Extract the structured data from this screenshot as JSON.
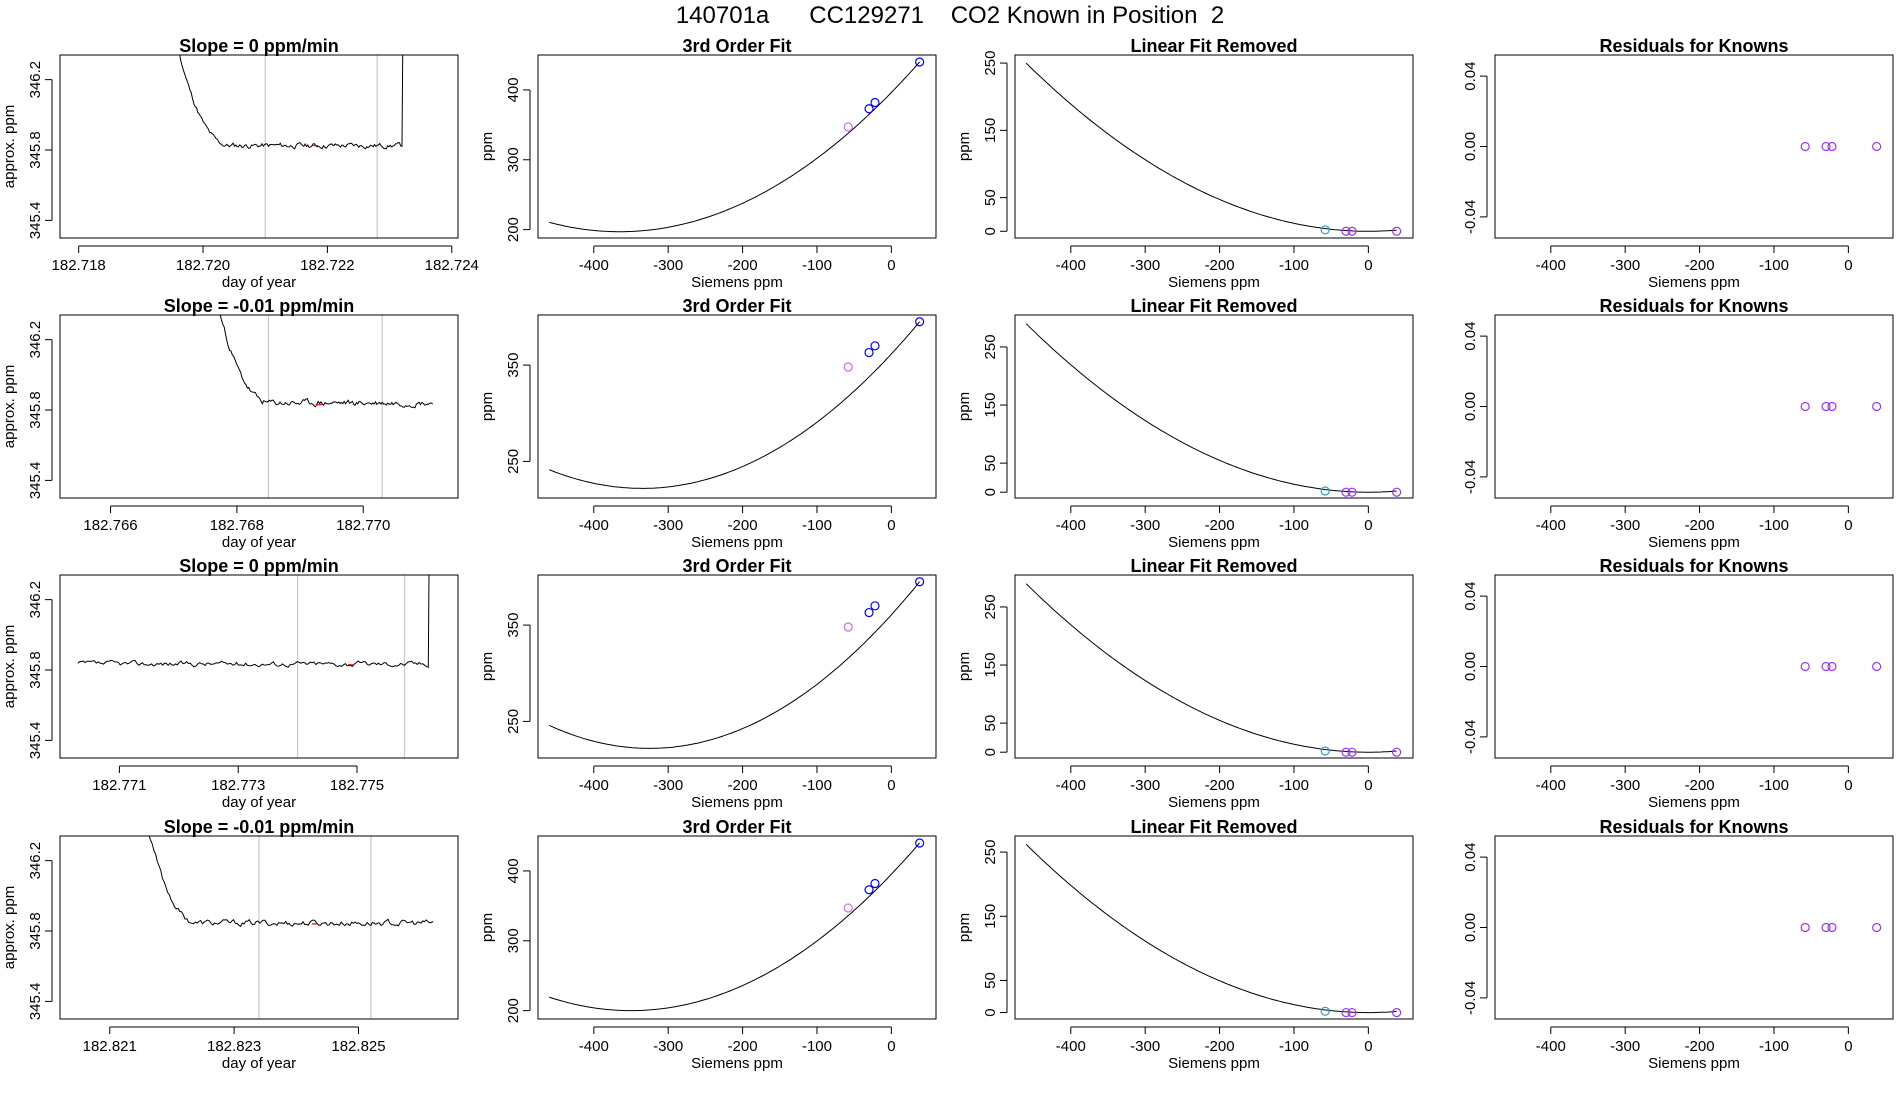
{
  "page": {
    "title": "140701a      CC129271    CO2 Known in Position  2"
  },
  "colors": {
    "axis": "#000000",
    "line": "#000000",
    "gridline": "#c8c8c8",
    "known_point": "#0000ff",
    "other_point": "#cc66ff",
    "cyan_point": "#2b9fbf",
    "residual_point": "#9933ff",
    "red_mark": "#ff0000"
  },
  "chart_data": [
    {
      "type": "line",
      "row": 0,
      "col": 0,
      "title": "Slope =  0  ppm/min",
      "xlabel": "day of year",
      "ylabel": "approx. ppm",
      "xlim": [
        182.7177,
        182.7241
      ],
      "ylim": [
        345.3,
        346.34
      ],
      "xticks": [
        182.718,
        182.72,
        182.722,
        182.724
      ],
      "xtick_labels": [
        "182.718",
        "182.720",
        "182.722",
        "182.724"
      ],
      "yticks": [
        345.4,
        345.8,
        346.2
      ],
      "ytick_labels": [
        "345.4",
        "345.8",
        "346.2"
      ],
      "vlines": [
        182.721,
        182.7228
      ],
      "red_mark": [
        182.7218,
        345.825
      ],
      "series": [
        {
          "name": "trace",
          "shape": "spike-plateau-spike",
          "x_start": 182.7192,
          "x_end": 182.7232,
          "plateau_start": 182.7196,
          "plateau": 345.825,
          "noise": 0.012,
          "seed": 11
        }
      ]
    },
    {
      "type": "line",
      "row": 0,
      "col": 1,
      "title": "3rd Order Fit",
      "xlabel": "Siemens ppm",
      "ylabel": "ppm",
      "xlim": [
        -475,
        60
      ],
      "ylim": [
        188,
        450
      ],
      "xticks": [
        -400,
        -300,
        -200,
        -100,
        0
      ],
      "xtick_labels": [
        "-400",
        "-300",
        "-200",
        "-100",
        "0"
      ],
      "yticks": [
        200,
        300,
        400
      ],
      "ytick_labels": [
        "200",
        "300",
        "400"
      ],
      "curve": {
        "x_from": -460,
        "x_to": 38,
        "x_min": -365,
        "y_min": 197,
        "x_ref": 38,
        "y_ref": 440
      },
      "points": [
        {
          "x": -58,
          "y": 347,
          "color": "other_point"
        },
        {
          "x": -30,
          "y": 373,
          "color": "known_point"
        },
        {
          "x": -22,
          "y": 382,
          "color": "known_point"
        },
        {
          "x": 38,
          "y": 440,
          "color": "known_point"
        }
      ]
    },
    {
      "type": "line",
      "row": 0,
      "col": 2,
      "title": "Linear Fit Removed",
      "xlabel": "Siemens ppm",
      "ylabel": "ppm",
      "xlim": [
        -475,
        60
      ],
      "ylim": [
        -10,
        262
      ],
      "xticks": [
        -400,
        -300,
        -200,
        -100,
        0
      ],
      "xtick_labels": [
        "-400",
        "-300",
        "-200",
        "-100",
        "0"
      ],
      "yticks": [
        0,
        50,
        150,
        250
      ],
      "ytick_labels": [
        "0",
        "50",
        "150",
        "250"
      ],
      "curve": {
        "x_from": -460,
        "x_to": 38,
        "x_min": 0,
        "y_min": 0,
        "x_ref": -460,
        "y_ref": 250
      },
      "points": [
        {
          "x": -58,
          "y": 2,
          "color": "cyan_point"
        },
        {
          "x": -30,
          "y": 0,
          "color": "residual_point"
        },
        {
          "x": -22,
          "y": 0,
          "color": "residual_point"
        },
        {
          "x": 38,
          "y": 0,
          "color": "residual_point"
        }
      ]
    },
    {
      "type": "scatter",
      "row": 0,
      "col": 3,
      "title": "Residuals for Knowns",
      "xlabel": "Siemens ppm",
      "ylabel": "",
      "xlim": [
        -475,
        60
      ],
      "ylim": [
        -0.052,
        0.052
      ],
      "xticks": [
        -400,
        -300,
        -200,
        -100,
        0
      ],
      "xtick_labels": [
        "-400",
        "-300",
        "-200",
        "-100",
        "0"
      ],
      "yticks": [
        -0.04,
        0,
        0.04
      ],
      "ytick_labels": [
        "-0.04",
        "0.00",
        "0.04"
      ],
      "points": [
        {
          "x": -58,
          "y": 0,
          "color": "residual_point"
        },
        {
          "x": -30,
          "y": 0,
          "color": "residual_point"
        },
        {
          "x": -22,
          "y": 0,
          "color": "residual_point"
        },
        {
          "x": 38,
          "y": 0,
          "color": "residual_point"
        }
      ]
    },
    {
      "type": "line",
      "row": 1,
      "col": 0,
      "title": "Slope =  -0.01  ppm/min",
      "xlabel": "day of year",
      "ylabel": "approx. ppm",
      "xlim": [
        182.7652,
        182.7715
      ],
      "ylim": [
        345.3,
        346.34
      ],
      "xticks": [
        182.766,
        182.768,
        182.77
      ],
      "xtick_labels": [
        "182.766",
        "182.768",
        "182.770"
      ],
      "yticks": [
        345.4,
        345.8,
        346.2
      ],
      "ytick_labels": [
        "345.4",
        "345.8",
        "346.2"
      ],
      "vlines": [
        182.7685,
        182.7703
      ],
      "red_mark": [
        182.7693,
        345.83
      ],
      "series": [
        {
          "name": "trace",
          "shape": "spike-plateau",
          "x_start": 182.767,
          "x_end": 182.7711,
          "plateau_start": 182.7677,
          "plateau": 345.84,
          "noise": 0.014,
          "seed": 23
        }
      ]
    },
    {
      "type": "line",
      "row": 1,
      "col": 1,
      "title": "3rd Order Fit",
      "xlabel": "Siemens ppm",
      "ylabel": "ppm",
      "xlim": [
        -475,
        60
      ],
      "ylim": [
        212,
        402
      ],
      "xticks": [
        -400,
        -300,
        -200,
        -100,
        0
      ],
      "xtick_labels": [
        "-400",
        "-300",
        "-200",
        "-100",
        "0"
      ],
      "yticks": [
        250,
        350
      ],
      "ytick_labels": [
        "250",
        "350"
      ],
      "curve": {
        "x_from": -460,
        "x_to": 38,
        "x_min": -335,
        "y_min": 222,
        "x_ref": 38,
        "y_ref": 395
      },
      "points": [
        {
          "x": -58,
          "y": 348,
          "color": "other_point"
        },
        {
          "x": -30,
          "y": 363,
          "color": "known_point"
        },
        {
          "x": -22,
          "y": 370,
          "color": "known_point"
        },
        {
          "x": 38,
          "y": 395,
          "color": "known_point"
        }
      ]
    },
    {
      "type": "line",
      "row": 1,
      "col": 2,
      "title": "Linear Fit Removed",
      "xlabel": "Siemens ppm",
      "ylabel": "ppm",
      "xlim": [
        -475,
        60
      ],
      "ylim": [
        -10,
        305
      ],
      "xticks": [
        -400,
        -300,
        -200,
        -100,
        0
      ],
      "xtick_labels": [
        "-400",
        "-300",
        "-200",
        "-100",
        "0"
      ],
      "yticks": [
        0,
        50,
        150,
        250
      ],
      "ytick_labels": [
        "0",
        "50",
        "150",
        "250"
      ],
      "curve": {
        "x_from": -460,
        "x_to": 38,
        "x_min": 0,
        "y_min": 0,
        "x_ref": -460,
        "y_ref": 290
      },
      "points": [
        {
          "x": -58,
          "y": 2,
          "color": "cyan_point"
        },
        {
          "x": -30,
          "y": 0,
          "color": "residual_point"
        },
        {
          "x": -22,
          "y": 0,
          "color": "residual_point"
        },
        {
          "x": 38,
          "y": 0,
          "color": "residual_point"
        }
      ]
    },
    {
      "type": "scatter",
      "row": 1,
      "col": 3,
      "title": "Residuals for Knowns",
      "xlabel": "Siemens ppm",
      "ylabel": "",
      "xlim": [
        -475,
        60
      ],
      "ylim": [
        -0.052,
        0.052
      ],
      "xticks": [
        -400,
        -300,
        -200,
        -100,
        0
      ],
      "xtick_labels": [
        "-400",
        "-300",
        "-200",
        "-100",
        "0"
      ],
      "yticks": [
        -0.04,
        0,
        0.04
      ],
      "ytick_labels": [
        "-0.04",
        "0.00",
        "0.04"
      ],
      "points": [
        {
          "x": -58,
          "y": 0,
          "color": "residual_point"
        },
        {
          "x": -30,
          "y": 0,
          "color": "residual_point"
        },
        {
          "x": -22,
          "y": 0,
          "color": "residual_point"
        },
        {
          "x": 38,
          "y": 0,
          "color": "residual_point"
        }
      ]
    },
    {
      "type": "line",
      "row": 2,
      "col": 0,
      "title": "Slope =  0  ppm/min",
      "xlabel": "day of year",
      "ylabel": "approx. ppm",
      "xlim": [
        182.77,
        182.7767
      ],
      "ylim": [
        345.3,
        346.34
      ],
      "xticks": [
        182.771,
        182.773,
        182.775
      ],
      "xtick_labels": [
        "182.771",
        "182.773",
        "182.775"
      ],
      "yticks": [
        345.4,
        345.8,
        346.2
      ],
      "ytick_labels": [
        "345.4",
        "345.8",
        "346.2"
      ],
      "vlines": [
        182.774,
        182.7758
      ],
      "red_mark": [
        182.7749,
        345.83
      ],
      "series": [
        {
          "name": "trace",
          "shape": "plateau-spike",
          "x_start": 182.7703,
          "x_end": 182.7762,
          "plateau_start": 182.7703,
          "plateau": 345.835,
          "noise": 0.012,
          "seed": 37
        }
      ]
    },
    {
      "type": "line",
      "row": 2,
      "col": 1,
      "title": "3rd Order Fit",
      "xlabel": "Siemens ppm",
      "ylabel": "ppm",
      "xlim": [
        -475,
        60
      ],
      "ylim": [
        212,
        402
      ],
      "xticks": [
        -400,
        -300,
        -200,
        -100,
        0
      ],
      "xtick_labels": [
        "-400",
        "-300",
        "-200",
        "-100",
        "0"
      ],
      "yticks": [
        250,
        350
      ],
      "ytick_labels": [
        "250",
        "350"
      ],
      "curve": {
        "x_from": -460,
        "x_to": 38,
        "x_min": -325,
        "y_min": 222,
        "x_ref": 38,
        "y_ref": 395
      },
      "points": [
        {
          "x": -58,
          "y": 348,
          "color": "other_point"
        },
        {
          "x": -30,
          "y": 363,
          "color": "known_point"
        },
        {
          "x": -22,
          "y": 370,
          "color": "known_point"
        },
        {
          "x": 38,
          "y": 395,
          "color": "known_point"
        }
      ]
    },
    {
      "type": "line",
      "row": 2,
      "col": 2,
      "title": "Linear Fit Removed",
      "xlabel": "Siemens ppm",
      "ylabel": "ppm",
      "xlim": [
        -475,
        60
      ],
      "ylim": [
        -10,
        305
      ],
      "xticks": [
        -400,
        -300,
        -200,
        -100,
        0
      ],
      "xtick_labels": [
        "-400",
        "-300",
        "-200",
        "-100",
        "0"
      ],
      "yticks": [
        0,
        50,
        150,
        250
      ],
      "ytick_labels": [
        "0",
        "50",
        "150",
        "250"
      ],
      "curve": {
        "x_from": -460,
        "x_to": 38,
        "x_min": 0,
        "y_min": 0,
        "x_ref": -460,
        "y_ref": 290
      },
      "points": [
        {
          "x": -58,
          "y": 2,
          "color": "cyan_point"
        },
        {
          "x": -30,
          "y": 0,
          "color": "residual_point"
        },
        {
          "x": -22,
          "y": 0,
          "color": "residual_point"
        },
        {
          "x": 38,
          "y": 0,
          "color": "residual_point"
        }
      ]
    },
    {
      "type": "scatter",
      "row": 2,
      "col": 3,
      "title": "Residuals for Knowns",
      "xlabel": "Siemens ppm",
      "ylabel": "",
      "xlim": [
        -475,
        60
      ],
      "ylim": [
        -0.052,
        0.052
      ],
      "xticks": [
        -400,
        -300,
        -200,
        -100,
        0
      ],
      "xtick_labels": [
        "-400",
        "-300",
        "-200",
        "-100",
        "0"
      ],
      "yticks": [
        -0.04,
        0,
        0.04
      ],
      "ytick_labels": [
        "-0.04",
        "0.00",
        "0.04"
      ],
      "points": [
        {
          "x": -58,
          "y": 0,
          "color": "residual_point"
        },
        {
          "x": -30,
          "y": 0,
          "color": "residual_point"
        },
        {
          "x": -22,
          "y": 0,
          "color": "residual_point"
        },
        {
          "x": 38,
          "y": 0,
          "color": "residual_point"
        }
      ]
    },
    {
      "type": "line",
      "row": 3,
      "col": 0,
      "title": "Slope =  -0.01  ppm/min",
      "xlabel": "day of year",
      "ylabel": "approx. ppm",
      "xlim": [
        182.8202,
        182.8266
      ],
      "ylim": [
        345.3,
        346.34
      ],
      "xticks": [
        182.821,
        182.823,
        182.825
      ],
      "xtick_labels": [
        "182.821",
        "182.823",
        "182.825"
      ],
      "yticks": [
        345.4,
        345.8,
        346.2
      ],
      "ytick_labels": [
        "345.4",
        "345.8",
        "346.2"
      ],
      "vlines": [
        182.8234,
        182.8252
      ],
      "red_mark": [
        182.8243,
        345.84
      ],
      "series": [
        {
          "name": "trace",
          "shape": "spike-plateau",
          "x_start": 182.8209,
          "x_end": 182.8262,
          "plateau_start": 182.8216,
          "plateau": 345.845,
          "noise": 0.014,
          "seed": 53
        }
      ]
    },
    {
      "type": "line",
      "row": 3,
      "col": 1,
      "title": "3rd Order Fit",
      "xlabel": "Siemens ppm",
      "ylabel": "ppm",
      "xlim": [
        -475,
        60
      ],
      "ylim": [
        188,
        450
      ],
      "xticks": [
        -400,
        -300,
        -200,
        -100,
        0
      ],
      "xtick_labels": [
        "-400",
        "-300",
        "-200",
        "-100",
        "0"
      ],
      "yticks": [
        200,
        300,
        400
      ],
      "ytick_labels": [
        "200",
        "300",
        "400"
      ],
      "curve": {
        "x_from": -460,
        "x_to": 38,
        "x_min": -350,
        "y_min": 200,
        "x_ref": 38,
        "y_ref": 440
      },
      "points": [
        {
          "x": -58,
          "y": 347,
          "color": "other_point"
        },
        {
          "x": -30,
          "y": 373,
          "color": "known_point"
        },
        {
          "x": -22,
          "y": 382,
          "color": "known_point"
        },
        {
          "x": 38,
          "y": 440,
          "color": "known_point"
        }
      ]
    },
    {
      "type": "line",
      "row": 3,
      "col": 2,
      "title": "Linear Fit Removed",
      "xlabel": "Siemens ppm",
      "ylabel": "ppm",
      "xlim": [
        -475,
        60
      ],
      "ylim": [
        -10,
        275
      ],
      "xticks": [
        -400,
        -300,
        -200,
        -100,
        0
      ],
      "xtick_labels": [
        "-400",
        "-300",
        "-200",
        "-100",
        "0"
      ],
      "yticks": [
        0,
        50,
        150,
        250
      ],
      "ytick_labels": [
        "0",
        "50",
        "150",
        "250"
      ],
      "curve": {
        "x_from": -460,
        "x_to": 38,
        "x_min": 0,
        "y_min": 0,
        "x_ref": -460,
        "y_ref": 262
      },
      "points": [
        {
          "x": -58,
          "y": 2,
          "color": "cyan_point"
        },
        {
          "x": -30,
          "y": 0,
          "color": "residual_point"
        },
        {
          "x": -22,
          "y": 0,
          "color": "residual_point"
        },
        {
          "x": 38,
          "y": 0,
          "color": "residual_point"
        }
      ]
    },
    {
      "type": "scatter",
      "row": 3,
      "col": 3,
      "title": "Residuals for Knowns",
      "xlabel": "Siemens ppm",
      "ylabel": "",
      "xlim": [
        -475,
        60
      ],
      "ylim": [
        -0.052,
        0.052
      ],
      "xticks": [
        -400,
        -300,
        -200,
        -100,
        0
      ],
      "xtick_labels": [
        "-400",
        "-300",
        "-200",
        "-100",
        "0"
      ],
      "yticks": [
        -0.04,
        0,
        0.04
      ],
      "ytick_labels": [
        "-0.04",
        "0.00",
        "0.04"
      ],
      "points": [
        {
          "x": -58,
          "y": 0,
          "color": "residual_point"
        },
        {
          "x": -30,
          "y": 0,
          "color": "residual_point"
        },
        {
          "x": -22,
          "y": 0,
          "color": "residual_point"
        },
        {
          "x": 38,
          "y": 0,
          "color": "residual_point"
        }
      ]
    }
  ]
}
